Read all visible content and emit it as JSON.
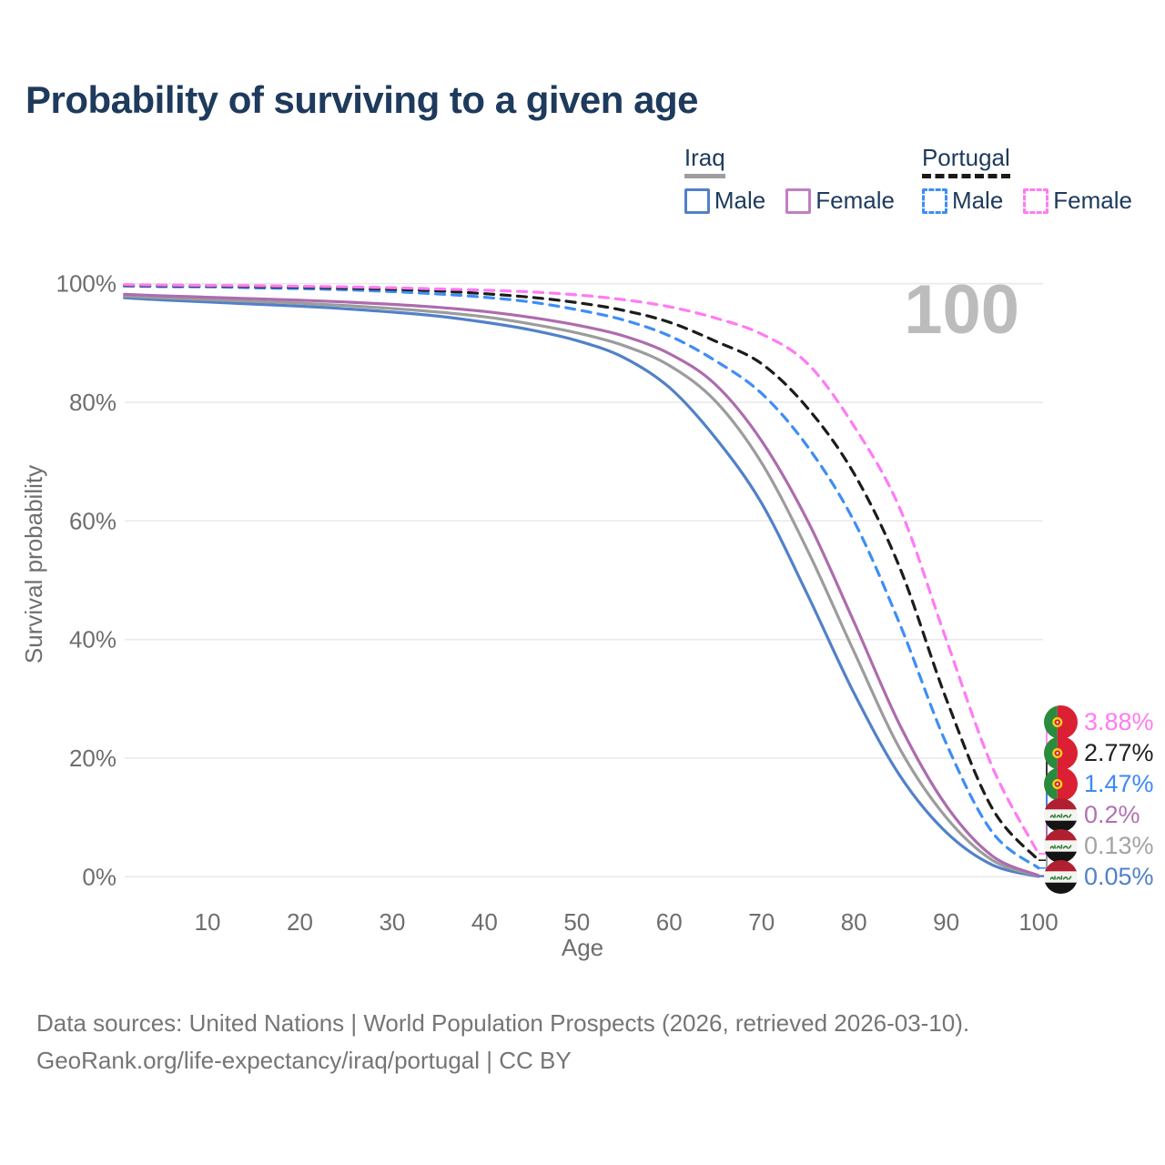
{
  "title": "Probability of surviving to a given age",
  "watermark": "100",
  "legend": {
    "groups": [
      {
        "country": "Iraq",
        "underline_style": "solid",
        "underline_color": "#9e9e9e",
        "items": [
          {
            "label": "Male",
            "color": "#5181c8",
            "dashed": false
          },
          {
            "label": "Female",
            "color": "#c07fc0",
            "dashed": false
          }
        ]
      },
      {
        "country": "Portugal",
        "underline_style": "dashed",
        "underline_color": "#1a1a1a",
        "items": [
          {
            "label": "Male",
            "color": "#3e8ef4",
            "dashed": true
          },
          {
            "label": "Female",
            "color": "#ff7bf3",
            "dashed": true
          }
        ]
      }
    ]
  },
  "chart_data": {
    "type": "line",
    "title": "Probability of surviving to a given age",
    "xlabel": "Age",
    "ylabel": "Survival probability",
    "xlim": [
      0,
      100
    ],
    "ylim": [
      0,
      100
    ],
    "x_ticks": [
      10,
      20,
      30,
      40,
      50,
      60,
      70,
      80,
      90,
      100
    ],
    "y_ticks": [
      0,
      20,
      40,
      60,
      80,
      100
    ],
    "y_tick_suffix": "%",
    "grid": "horizontal",
    "legend_position": "top-right",
    "age_frame_label": "100",
    "x": [
      1,
      5,
      10,
      15,
      20,
      25,
      30,
      35,
      40,
      45,
      50,
      55,
      60,
      65,
      70,
      75,
      80,
      85,
      90,
      95,
      100
    ],
    "series": [
      {
        "name": "Portugal Female",
        "country": "Portugal",
        "sex": "Female",
        "style": "dashed",
        "color": "#ff7bf3",
        "label_color": "#ff7bf3",
        "flag": "portugal",
        "end_label": "3.88%",
        "values": [
          99.8,
          99.75,
          99.7,
          99.65,
          99.55,
          99.45,
          99.3,
          99.1,
          98.9,
          98.6,
          98.1,
          97.3,
          96.1,
          94.2,
          91.5,
          86.5,
          76.0,
          62.0,
          40.0,
          18.5,
          3.88
        ]
      },
      {
        "name": "Portugal",
        "country": "Portugal",
        "sex": "Both",
        "style": "dashed",
        "color": "#1c1c1c",
        "label_color": "#1f1f1f",
        "flag": "portugal",
        "end_label": "2.77%",
        "values": [
          99.7,
          99.65,
          99.6,
          99.5,
          99.4,
          99.25,
          99.05,
          98.75,
          98.3,
          97.7,
          96.8,
          95.5,
          93.5,
          90.3,
          86.5,
          79.0,
          68.0,
          52.0,
          30.0,
          11.5,
          2.77
        ]
      },
      {
        "name": "Portugal Male",
        "country": "Portugal",
        "sex": "Male",
        "style": "dashed",
        "color": "#3e8ef4",
        "label_color": "#3d8af5",
        "flag": "portugal",
        "end_label": "1.47%",
        "values": [
          99.6,
          99.5,
          99.45,
          99.3,
          99.15,
          98.95,
          98.65,
          98.25,
          97.7,
          96.9,
          95.6,
          93.9,
          91.2,
          87.0,
          81.5,
          72.5,
          60.0,
          42.5,
          22.5,
          7.5,
          1.47
        ]
      },
      {
        "name": "Iraq Female",
        "country": "Iraq",
        "sex": "Female",
        "style": "solid",
        "color": "#ad6cad",
        "label_color": "#b172b1",
        "flag": "iraq",
        "end_label": "0.2%",
        "values": [
          98.2,
          97.95,
          97.7,
          97.45,
          97.2,
          96.9,
          96.5,
          96.0,
          95.3,
          94.3,
          93.0,
          91.2,
          88.2,
          83.0,
          73.5,
          60.0,
          43.0,
          25.5,
          12.0,
          3.5,
          0.2
        ]
      },
      {
        "name": "Iraq",
        "country": "Iraq",
        "sex": "Both",
        "style": "solid",
        "color": "#9c9c9c",
        "label_color": "#a3a3a3",
        "flag": "iraq",
        "end_label": "0.13%",
        "values": [
          97.9,
          97.6,
          97.3,
          97.0,
          96.7,
          96.3,
          95.8,
          95.2,
          94.4,
          93.2,
          91.7,
          89.6,
          86.2,
          80.2,
          69.8,
          55.0,
          38.0,
          21.5,
          10.0,
          2.8,
          0.13
        ]
      },
      {
        "name": "Iraq Male",
        "country": "Iraq",
        "sex": "Male",
        "style": "solid",
        "color": "#5181c8",
        "label_color": "#5181c8",
        "flag": "iraq",
        "end_label": "0.05%",
        "values": [
          97.6,
          97.25,
          96.9,
          96.55,
          96.2,
          95.75,
          95.2,
          94.5,
          93.5,
          92.2,
          90.4,
          87.6,
          82.5,
          74.0,
          63.0,
          47.5,
          31.0,
          17.0,
          7.5,
          2.0,
          0.05
        ]
      }
    ]
  },
  "footer": {
    "line1": "Data sources: United Nations | World Population Prospects (2026, retrieved 2026-03-10).",
    "line2": "GeoRank.org/life-expectancy/iraq/portugal | CC BY"
  }
}
